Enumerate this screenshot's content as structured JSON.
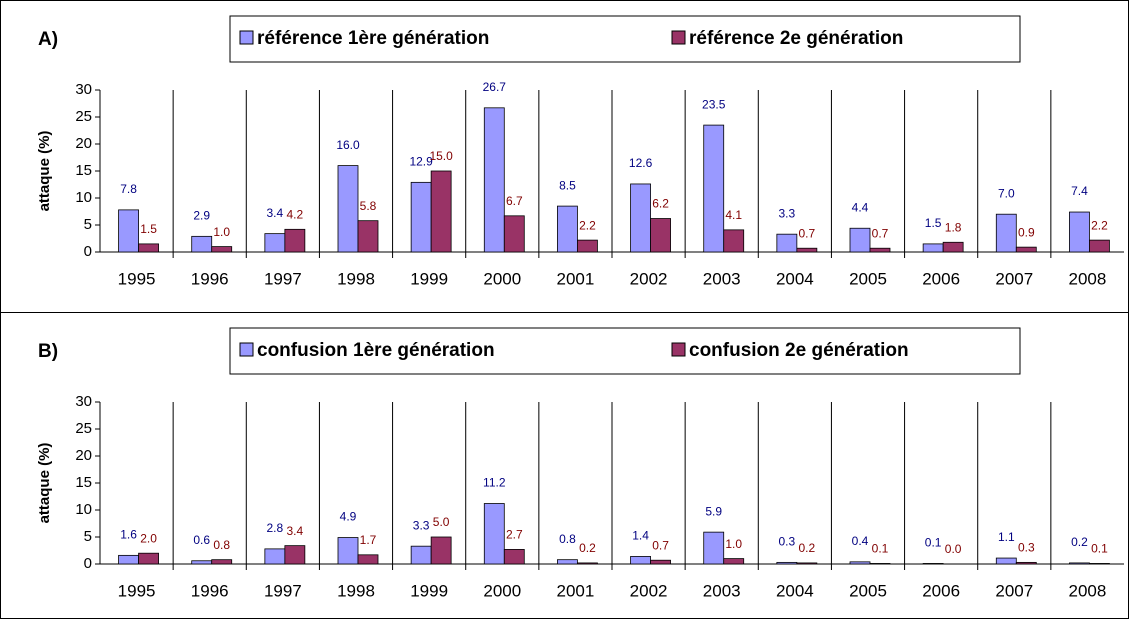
{
  "chart_data": [
    {
      "type": "bar",
      "label": "A)",
      "ylabel": "attaque (%)",
      "categories": [
        "1995",
        "1996",
        "1997",
        "1998",
        "1999",
        "2000",
        "2001",
        "2002",
        "2003",
        "2004",
        "2005",
        "2006",
        "2007",
        "2008"
      ],
      "series": [
        {
          "name": "référence 1ère génération",
          "color": "#9999ff",
          "label_color": "#000080",
          "values": [
            7.8,
            2.9,
            3.4,
            16.0,
            12.9,
            26.7,
            8.5,
            12.6,
            23.5,
            3.3,
            4.4,
            1.5,
            7.0,
            7.4
          ],
          "value_labels": [
            "7.8",
            "2.9",
            "3.4",
            "16.0",
            "12.9",
            "26.7",
            "8.5",
            "12.6",
            "23.5",
            "3.3",
            "4.4",
            "1.5",
            "7.0",
            "7.4"
          ]
        },
        {
          "name": "référence 2e génération",
          "color": "#993366",
          "label_color": "#800000",
          "values": [
            1.5,
            1.0,
            4.2,
            5.8,
            15.0,
            6.7,
            2.2,
            6.2,
            4.1,
            0.7,
            0.7,
            1.8,
            0.9,
            2.2
          ],
          "value_labels": [
            "1.5",
            "1.0",
            "4.2",
            "5.8",
            "15.0",
            "6.7",
            "2.2",
            "6.2",
            "4.1",
            "0.7",
            "0.7",
            "1.8",
            "0.9",
            "2.2"
          ]
        }
      ],
      "ylim": [
        0,
        30
      ],
      "yticks": [
        0,
        5,
        10,
        15,
        20,
        25,
        30
      ]
    },
    {
      "type": "bar",
      "label": "B)",
      "ylabel": "attaque (%)",
      "categories": [
        "1995",
        "1996",
        "1997",
        "1998",
        "1999",
        "2000",
        "2001",
        "2002",
        "2003",
        "2004",
        "2005",
        "2006",
        "2007",
        "2008"
      ],
      "series": [
        {
          "name": "confusion 1ère génération",
          "color": "#9999ff",
          "label_color": "#000080",
          "values": [
            1.6,
            0.6,
            2.8,
            4.9,
            3.3,
            11.2,
            0.8,
            1.4,
            5.9,
            0.3,
            0.4,
            0.1,
            1.1,
            0.2
          ],
          "value_labels": [
            "1.6",
            "0.6",
            "2.8",
            "4.9",
            "3.3",
            "11.2",
            "0.8",
            "1.4",
            "5.9",
            "0.3",
            "0.4",
            "0.1",
            "1.1",
            "0.2"
          ]
        },
        {
          "name": "confusion 2e génération",
          "color": "#993366",
          "label_color": "#800000",
          "values": [
            2.0,
            0.8,
            3.4,
            1.7,
            5.0,
            2.7,
            0.2,
            0.7,
            1.0,
            0.2,
            0.1,
            0.0,
            0.3,
            0.1
          ],
          "value_labels": [
            "2.0",
            "0.8",
            "3.4",
            "1.7",
            "5.0",
            "2.7",
            "0.2",
            "0.7",
            "1.0",
            "0.2",
            "0.1",
            "0.0",
            "0.3",
            "0.1"
          ]
        }
      ],
      "ylim": [
        0,
        30
      ],
      "yticks": [
        0,
        5,
        10,
        15,
        20,
        25,
        30
      ]
    }
  ]
}
